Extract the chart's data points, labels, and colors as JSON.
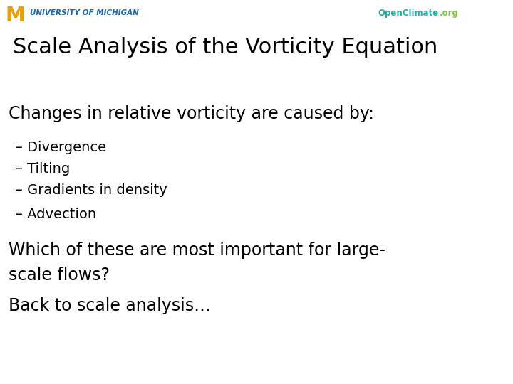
{
  "background_color": "#ffffff",
  "title": "Scale Analysis of the Vorticity Equation",
  "title_fontsize": 22,
  "title_color": "#000000",
  "header_left_M_color": "#e8a000",
  "header_left_text": "UNIVERSITY OF MICHIGAN",
  "header_left_text_color": "#1a6aab",
  "header_right_text1": "OpenClimate",
  "header_right_text1_color": "#2aa8a8",
  "header_right_text2": ".org",
  "header_right_text2_color": "#7ec44f",
  "header_bg_color": "#f0f0f0",
  "subtitle": "Changes in relative vorticity are caused by:",
  "subtitle_fontsize": 17,
  "subtitle_color": "#000000",
  "bullet_items": [
    "– Divergence",
    "– Tilting",
    "– Gradients in density",
    "– Advection"
  ],
  "bullet_fontsize": 14,
  "bullet_color": "#000000",
  "closing_lines": [
    "Which of these are most important for large-",
    "scale flows?",
    "Back to scale analysis…"
  ],
  "closing_fontsize": 17,
  "closing_color": "#000000"
}
